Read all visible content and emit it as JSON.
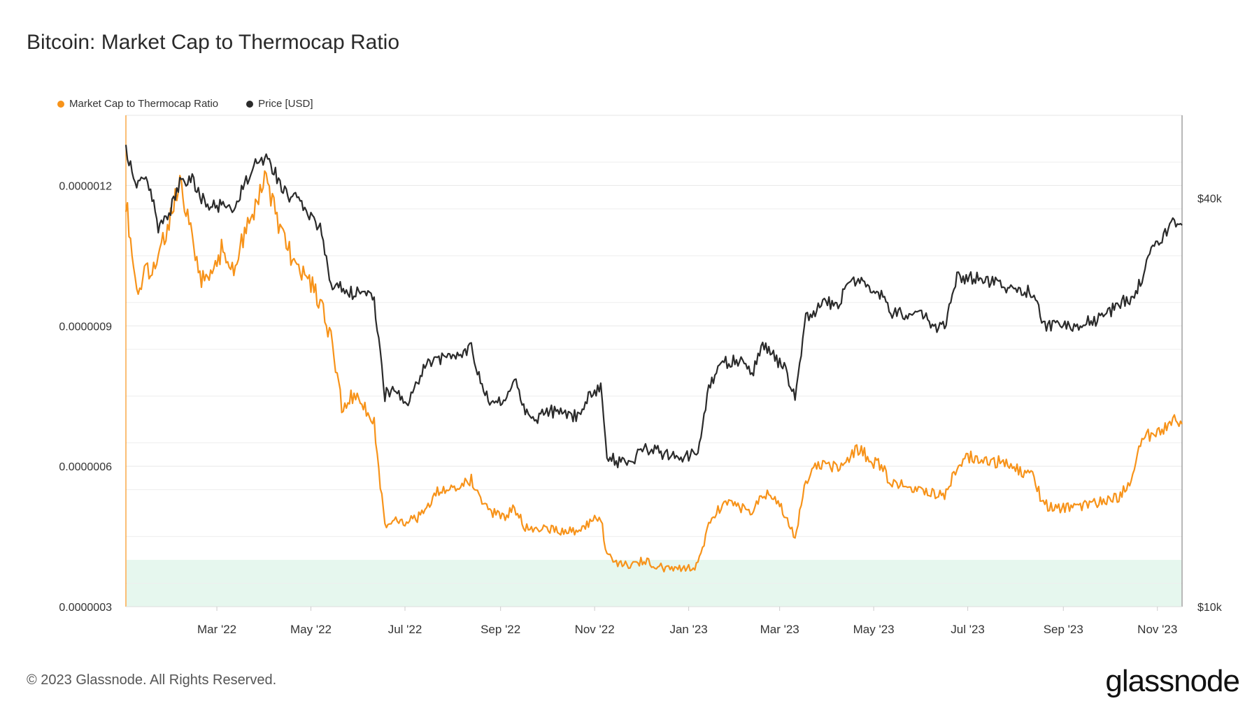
{
  "chart_data": {
    "type": "line",
    "title": "Bitcoin: Market Cap to Thermocap Ratio",
    "legend_position": "top-left",
    "x_range": [
      "2022-01-01",
      "2023-11-17"
    ],
    "x_ticks": [
      "Mar '22",
      "May '22",
      "Jul '22",
      "Sep '22",
      "Nov '22",
      "Jan '23",
      "Mar '23",
      "May '23",
      "Jul '23",
      "Sep '23",
      "Nov '23"
    ],
    "y_left": {
      "range": [
        3e-07,
        1.35e-06
      ],
      "ticks": [
        "0.0000012",
        "0.0000009",
        "0.0000006",
        "0.0000003"
      ],
      "tick_values": [
        1.2e-06,
        9e-07,
        6e-07,
        3e-07
      ]
    },
    "y_right": {
      "scale": "log",
      "range": [
        10000,
        53000
      ],
      "ticks": [
        "$40k",
        "$10k"
      ],
      "tick_values": [
        40000,
        10000
      ]
    },
    "band": {
      "y_from": 3e-07,
      "y_to": 4e-07,
      "color": "#e6f7ee"
    },
    "series": [
      {
        "name": "Market Cap to Thermocap Ratio",
        "axis": "left",
        "color": "#f7931a",
        "x": [
          "2022-01-01",
          "2022-01-08",
          "2022-01-15",
          "2022-01-22",
          "2022-01-29",
          "2022-02-05",
          "2022-02-12",
          "2022-02-19",
          "2022-02-26",
          "2022-03-05",
          "2022-03-12",
          "2022-03-19",
          "2022-03-26",
          "2022-04-02",
          "2022-04-09",
          "2022-04-16",
          "2022-04-23",
          "2022-04-30",
          "2022-05-07",
          "2022-05-14",
          "2022-05-21",
          "2022-05-28",
          "2022-06-04",
          "2022-06-11",
          "2022-06-18",
          "2022-06-25",
          "2022-07-02",
          "2022-07-09",
          "2022-07-16",
          "2022-07-23",
          "2022-07-30",
          "2022-08-06",
          "2022-08-13",
          "2022-08-20",
          "2022-08-27",
          "2022-09-03",
          "2022-09-10",
          "2022-09-17",
          "2022-09-24",
          "2022-10-01",
          "2022-10-08",
          "2022-10-15",
          "2022-10-22",
          "2022-10-29",
          "2022-11-05",
          "2022-11-09",
          "2022-11-12",
          "2022-11-19",
          "2022-11-26",
          "2022-12-03",
          "2022-12-10",
          "2022-12-17",
          "2022-12-24",
          "2022-12-31",
          "2023-01-07",
          "2023-01-14",
          "2023-01-21",
          "2023-01-28",
          "2023-02-04",
          "2023-02-11",
          "2023-02-18",
          "2023-02-25",
          "2023-03-04",
          "2023-03-11",
          "2023-03-18",
          "2023-03-25",
          "2023-04-01",
          "2023-04-08",
          "2023-04-15",
          "2023-04-22",
          "2023-04-29",
          "2023-05-06",
          "2023-05-13",
          "2023-05-20",
          "2023-05-27",
          "2023-06-03",
          "2023-06-10",
          "2023-06-17",
          "2023-06-24",
          "2023-07-01",
          "2023-07-08",
          "2023-07-15",
          "2023-07-22",
          "2023-07-29",
          "2023-08-05",
          "2023-08-12",
          "2023-08-19",
          "2023-08-26",
          "2023-09-02",
          "2023-09-09",
          "2023-09-16",
          "2023-09-23",
          "2023-09-30",
          "2023-10-07",
          "2023-10-14",
          "2023-10-21",
          "2023-10-28",
          "2023-11-04",
          "2023-11-11",
          "2023-11-17"
        ],
        "y": [
          1.17e-06,
          9.7e-07,
          1.02e-06,
          1.04e-06,
          1.13e-06,
          1.2e-06,
          1.1e-06,
          1e-06,
          1.01e-06,
          1.07e-06,
          1.01e-06,
          1.1e-06,
          1.15e-06,
          1.22e-06,
          1.13e-06,
          1.07e-06,
          1.01e-06,
          1e-06,
          9.5e-07,
          8.7e-07,
          7.3e-07,
          7.5e-07,
          7.3e-07,
          6.9e-07,
          4.7e-07,
          4.9e-07,
          4.8e-07,
          4.9e-07,
          5.2e-07,
          5.5e-07,
          5.5e-07,
          5.6e-07,
          5.7e-07,
          5.3e-07,
          5e-07,
          4.9e-07,
          5.1e-07,
          4.7e-07,
          4.7e-07,
          4.7e-07,
          4.6e-07,
          4.6e-07,
          4.6e-07,
          4.8e-07,
          4.9e-07,
          4.1e-07,
          4e-07,
          3.9e-07,
          3.9e-07,
          4e-07,
          3.9e-07,
          3.8e-07,
          3.8e-07,
          3.8e-07,
          3.9e-07,
          4.7e-07,
          5.1e-07,
          5.2e-07,
          5.1e-07,
          5e-07,
          5.4e-07,
          5.4e-07,
          5e-07,
          4.5e-07,
          5.7e-07,
          6e-07,
          6e-07,
          6e-07,
          6.2e-07,
          6.4e-07,
          6.1e-07,
          6e-07,
          5.6e-07,
          5.6e-07,
          5.5e-07,
          5.5e-07,
          5.4e-07,
          5.4e-07,
          6e-07,
          6.2e-07,
          6.2e-07,
          6.1e-07,
          6.1e-07,
          6e-07,
          5.9e-07,
          5.8e-07,
          5.2e-07,
          5.1e-07,
          5.1e-07,
          5.1e-07,
          5.2e-07,
          5.2e-07,
          5.3e-07,
          5.3e-07,
          5.7e-07,
          6.5e-07,
          6.7e-07,
          6.8e-07,
          7e-07,
          6.9e-07
        ]
      },
      {
        "name": "Price [USD]",
        "axis": "right",
        "color": "#2b2b2b",
        "x": [
          "2022-01-01",
          "2022-01-08",
          "2022-01-15",
          "2022-01-22",
          "2022-01-29",
          "2022-02-05",
          "2022-02-12",
          "2022-02-19",
          "2022-02-26",
          "2022-03-05",
          "2022-03-12",
          "2022-03-19",
          "2022-03-26",
          "2022-04-02",
          "2022-04-09",
          "2022-04-16",
          "2022-04-23",
          "2022-04-30",
          "2022-05-07",
          "2022-05-14",
          "2022-05-21",
          "2022-05-28",
          "2022-06-04",
          "2022-06-11",
          "2022-06-18",
          "2022-06-25",
          "2022-07-02",
          "2022-07-09",
          "2022-07-16",
          "2022-07-23",
          "2022-07-30",
          "2022-08-06",
          "2022-08-13",
          "2022-08-20",
          "2022-08-27",
          "2022-09-03",
          "2022-09-10",
          "2022-09-17",
          "2022-09-24",
          "2022-10-01",
          "2022-10-08",
          "2022-10-15",
          "2022-10-22",
          "2022-10-29",
          "2022-11-05",
          "2022-11-09",
          "2022-11-12",
          "2022-11-19",
          "2022-11-26",
          "2022-12-03",
          "2022-12-10",
          "2022-12-17",
          "2022-12-24",
          "2022-12-31",
          "2023-01-07",
          "2023-01-14",
          "2023-01-21",
          "2023-01-28",
          "2023-02-04",
          "2023-02-11",
          "2023-02-18",
          "2023-02-25",
          "2023-03-04",
          "2023-03-11",
          "2023-03-18",
          "2023-03-25",
          "2023-04-01",
          "2023-04-08",
          "2023-04-15",
          "2023-04-22",
          "2023-04-29",
          "2023-05-06",
          "2023-05-13",
          "2023-05-20",
          "2023-05-27",
          "2023-06-03",
          "2023-06-10",
          "2023-06-17",
          "2023-06-24",
          "2023-07-01",
          "2023-07-08",
          "2023-07-15",
          "2023-07-22",
          "2023-07-29",
          "2023-08-05",
          "2023-08-12",
          "2023-08-19",
          "2023-08-26",
          "2023-09-02",
          "2023-09-09",
          "2023-09-16",
          "2023-09-23",
          "2023-09-30",
          "2023-10-07",
          "2023-10-14",
          "2023-10-21",
          "2023-10-28",
          "2023-11-04",
          "2023-11-11",
          "2023-11-17"
        ],
        "y": [
          47000,
          42000,
          43000,
          36000,
          38000,
          42000,
          43000,
          40000,
          39000,
          39000,
          39000,
          42000,
          45000,
          46000,
          43000,
          40000,
          40000,
          38000,
          36000,
          30000,
          29500,
          29000,
          29800,
          28000,
          20500,
          21000,
          20000,
          21500,
          23000,
          23000,
          23500,
          23200,
          24300,
          21000,
          20000,
          20000,
          21500,
          19500,
          19000,
          19300,
          19500,
          19100,
          19200,
          20500,
          21000,
          16500,
          16500,
          16300,
          16500,
          17000,
          17100,
          16700,
          16800,
          16600,
          17000,
          20800,
          22700,
          23000,
          23000,
          21900,
          24500,
          23500,
          22400,
          20500,
          26500,
          27500,
          28000,
          28000,
          30000,
          30300,
          29200,
          29000,
          27000,
          27000,
          26800,
          26900,
          25800,
          26300,
          30500,
          30400,
          30600,
          30200,
          29900,
          29400,
          29000,
          29200,
          26100,
          26000,
          25800,
          25900,
          26600,
          26500,
          27000,
          28000,
          28500,
          30000,
          34500,
          35000,
          37000,
          36500
        ]
      }
    ]
  },
  "footer": {
    "copyright": "© 2023 Glassnode. All Rights Reserved.",
    "brand": "glassnode"
  }
}
